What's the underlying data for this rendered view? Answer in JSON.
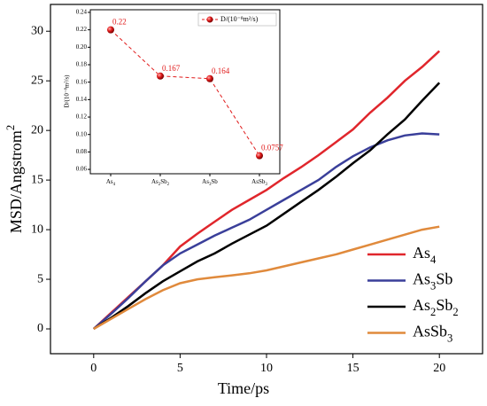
{
  "chart_data": [
    {
      "type": "line",
      "xlabel": "Time/ps",
      "ylabel": "MSD/Angstrom2",
      "x": [
        0,
        1,
        2,
        3,
        4,
        5,
        6,
        7,
        8,
        9,
        10,
        11,
        12,
        13,
        14,
        15,
        16,
        17,
        18,
        19,
        20
      ],
      "xlim": [
        -2.5,
        22.5
      ],
      "xticks": [
        0,
        5,
        10,
        15,
        20
      ],
      "ylim": [
        -2.5,
        32.7
      ],
      "yticks": [
        0,
        5,
        10,
        15,
        20,
        25,
        30
      ],
      "legend": "lower right",
      "series": [
        {
          "name": "As4",
          "color": "#e0262c",
          "values": [
            0,
            1.6,
            3.2,
            4.8,
            6.4,
            8.3,
            9.6,
            10.8,
            12,
            13,
            14,
            15.2,
            16.3,
            17.5,
            18.8,
            20.1,
            21.8,
            23.3,
            25,
            26.4,
            28
          ]
        },
        {
          "name": "As3Sb",
          "color": "#3a3f9a",
          "values": [
            0,
            1.5,
            3.1,
            4.8,
            6.4,
            7.6,
            8.5,
            9.4,
            10.2,
            11,
            12,
            13,
            14,
            15,
            16.3,
            17.4,
            18.3,
            19,
            19.5,
            19.7,
            19.6
          ]
        },
        {
          "name": "As2Sb2",
          "color": "#000000",
          "values": [
            0,
            1.1,
            2.3,
            3.6,
            4.8,
            5.8,
            6.8,
            7.6,
            8.6,
            9.5,
            10.4,
            11.6,
            12.8,
            14,
            15.3,
            16.7,
            18,
            19.6,
            21.1,
            23,
            24.8
          ]
        },
        {
          "name": "AsSb3",
          "color": "#e08a3c",
          "values": [
            0,
            1,
            2,
            3,
            3.9,
            4.6,
            5,
            5.2,
            5.4,
            5.6,
            5.9,
            6.3,
            6.7,
            7.1,
            7.5,
            8,
            8.5,
            9,
            9.5,
            10,
            10.3
          ]
        }
      ]
    },
    {
      "type": "line",
      "ylabel": "D/(10⁻⁸m²/s)",
      "categories": [
        "As4",
        "As2Sb2",
        "As3Sb",
        "AsSb3"
      ],
      "ylim": [
        0.055,
        0.243
      ],
      "yticks": [
        0.06,
        0.08,
        {
          "value": 0.1,
          "label": "0.10"
        },
        0.12,
        0.14,
        0.16,
        0.18,
        {
          "value": 0.2,
          "label": "0.20"
        },
        0.22,
        0.24
      ],
      "legend": "upper right",
      "series": [
        {
          "name": "D/(10⁻⁸m²/s)",
          "color": "#e01b1b",
          "values": [
            0.22,
            0.167,
            0.164,
            0.0757
          ]
        }
      ]
    }
  ]
}
